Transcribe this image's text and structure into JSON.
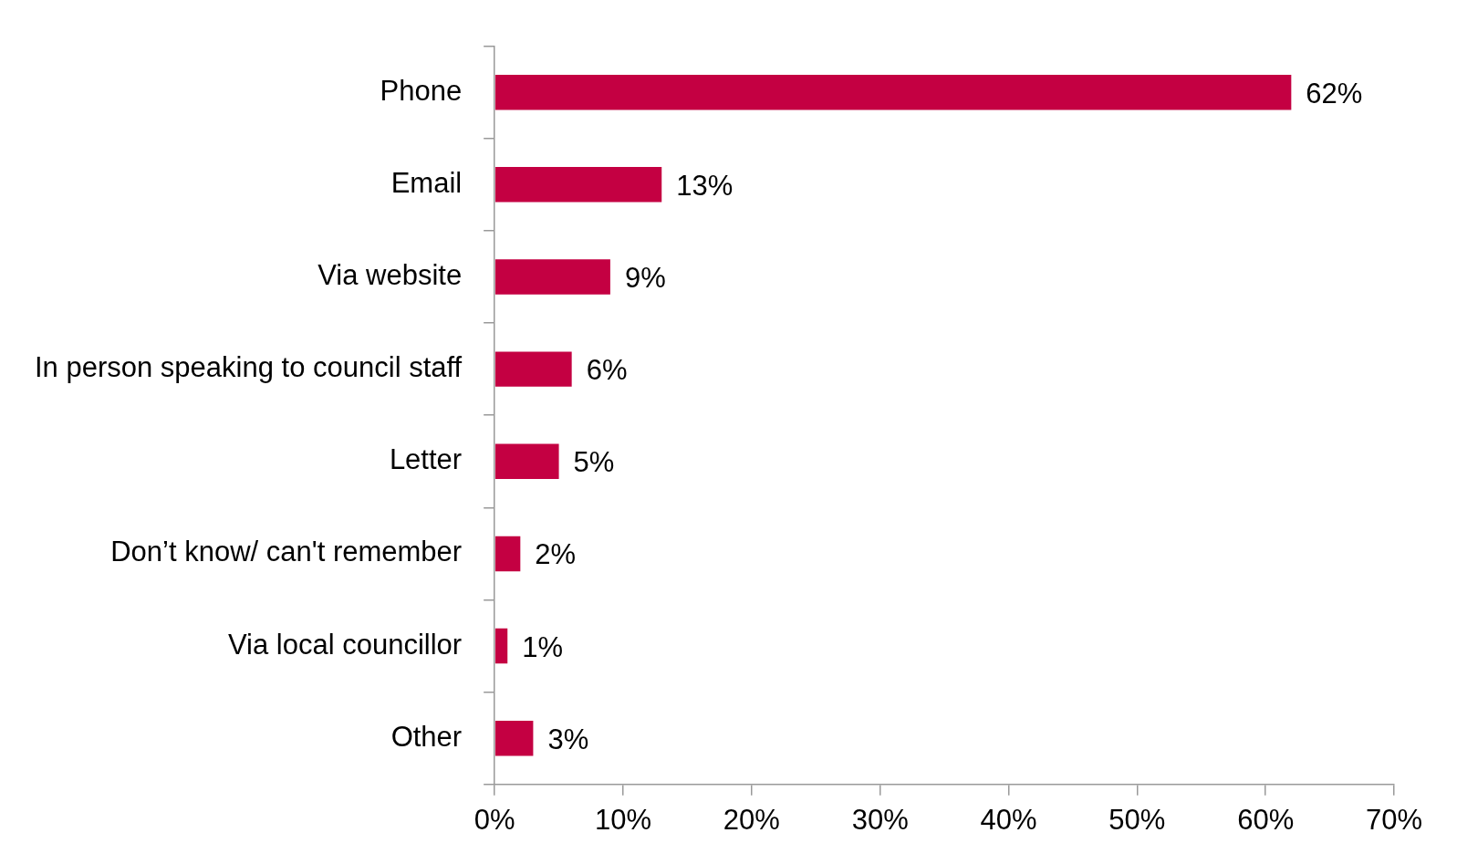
{
  "chart_data": {
    "type": "bar",
    "orientation": "horizontal",
    "categories": [
      "Phone",
      "Email",
      "Via website",
      "In person speaking to council staff",
      "Letter",
      "Don’t know/ can't remember",
      "Via local councillor",
      "Other"
    ],
    "values": [
      62,
      13,
      9,
      6,
      5,
      2,
      1,
      3
    ],
    "value_labels": [
      "62%",
      "13%",
      "9%",
      "6%",
      "5%",
      "2%",
      "1%",
      "3%"
    ],
    "color": "#c40042",
    "xlim": [
      0,
      70
    ],
    "xticks": [
      {
        "value": 0,
        "label": "0%"
      },
      {
        "value": 10,
        "label": "10%"
      },
      {
        "value": 20,
        "label": "20%"
      },
      {
        "value": 30,
        "label": "30%"
      },
      {
        "value": 40,
        "label": "40%"
      },
      {
        "value": 50,
        "label": "50%"
      },
      {
        "value": 60,
        "label": "60%"
      },
      {
        "value": 70,
        "label": "70%"
      }
    ],
    "grid": false,
    "legend": false
  }
}
